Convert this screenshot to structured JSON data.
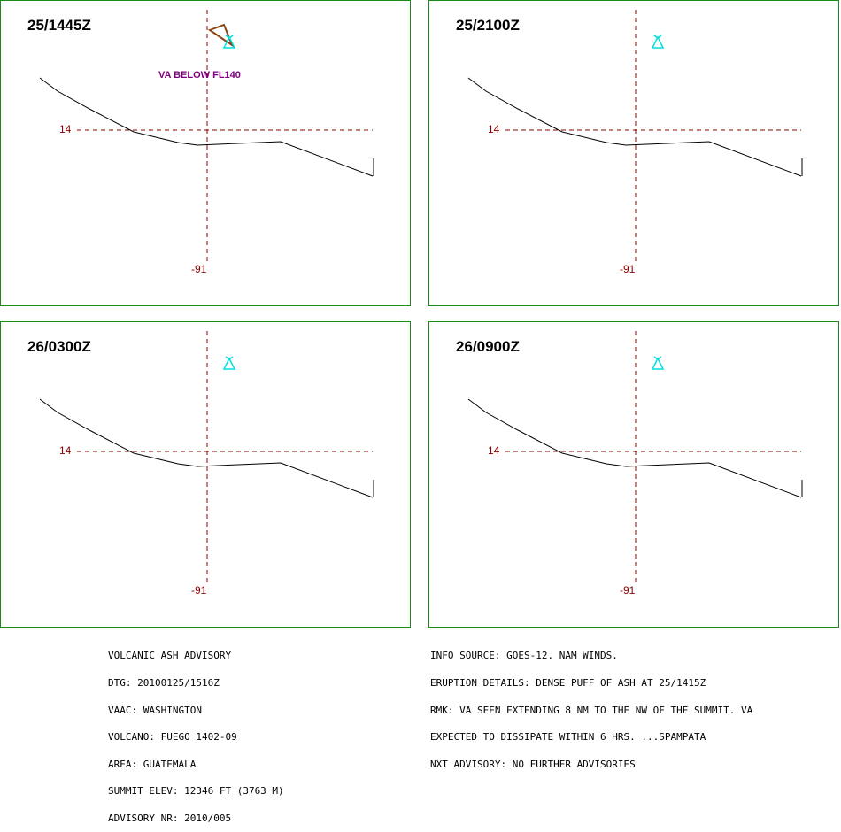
{
  "panels": [
    {
      "title": "25/1445Z",
      "lat_label": "14",
      "lon_label": "-91",
      "annotation": "VA BELOW FL140",
      "ash_polygon": true
    },
    {
      "title": "25/2100Z",
      "lat_label": "14",
      "lon_label": "-91",
      "annotation": "",
      "ash_polygon": false
    },
    {
      "title": "26/0300Z",
      "lat_label": "14",
      "lon_label": "-91",
      "annotation": "",
      "ash_polygon": false
    },
    {
      "title": "26/0900Z",
      "lat_label": "14",
      "lon_label": "-91",
      "annotation": "",
      "ash_polygon": false
    }
  ],
  "advisory_left": [
    "VOLCANIC ASH ADVISORY",
    "DTG: 20100125/1516Z",
    "VAAC: WASHINGTON",
    "VOLCANO: FUEGO 1402-09",
    "AREA: GUATEMALA",
    "SUMMIT ELEV: 12346 FT (3763 M)",
    "ADVISORY NR: 2010/005"
  ],
  "advisory_right": [
    "INFO SOURCE: GOES-12. NAM WINDS.",
    "ERUPTION DETAILS: DENSE PUFF OF ASH AT 25/1415Z",
    "RMK: VA SEEN EXTENDING 8 NM TO THE NW OF THE SUMMIT. VA",
    "EXPECTED TO DISSIPATE WITHIN 6 HRS. ...SPAMPATA",
    "NXT ADVISORY: NO FURTHER ADVISORIES"
  ],
  "colors": {
    "border": "#1a8a1a",
    "gridline": "#8b0000",
    "coastline": "#000000",
    "volcano": "#00e0e0",
    "ash_polygon": "#8b4513",
    "annotation": "#800080"
  },
  "icons": {
    "volcano": "volcano-icon"
  }
}
